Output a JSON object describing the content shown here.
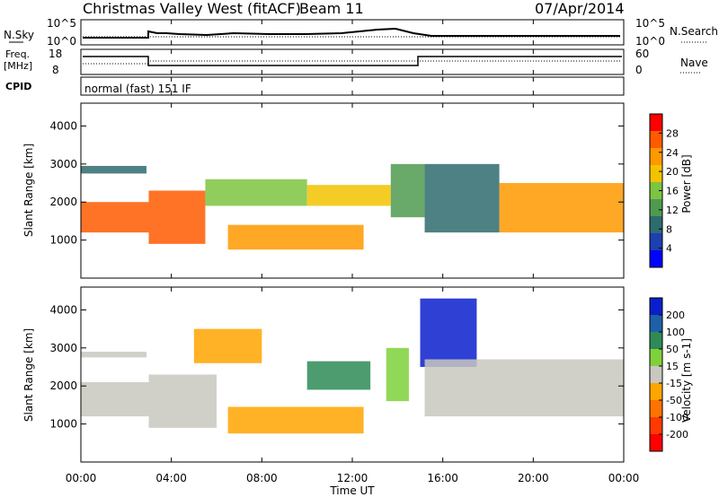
{
  "header": {
    "station": "Christmas Valley West (fitACF)",
    "beam": "Beam 11",
    "date": "07/Apr/2014"
  },
  "panels": {
    "nsky": {
      "label": "N.Sky",
      "tick_top": "10^5",
      "tick_bottom": "10^0"
    },
    "nsearch": {
      "label": "N.Search",
      "tick_top": "10^5",
      "tick_bottom": "10^0"
    },
    "freq": {
      "label_line1": "Freq.",
      "label_line2": "[MHz]",
      "tick_top": "18",
      "tick_bottom": "8"
    },
    "nave": {
      "label": "Nave",
      "tick_top": "60",
      "tick_bottom": "0"
    },
    "cpid": {
      "label": "CPID",
      "value": "normal (fast) 151 IF"
    }
  },
  "chart_data": [
    {
      "type": "heatmap",
      "name": "power",
      "ylabel": "Slant Range [km]",
      "y_ticks": [
        1000,
        2000,
        3000,
        4000
      ],
      "ylim": [
        0,
        4600
      ],
      "colorbar": {
        "label": "Power [dB]",
        "ticks": [
          "4",
          "8",
          "12",
          "16",
          "20",
          "24",
          "28"
        ],
        "colors": [
          "#0000ff",
          "#1d3fb0",
          "#2e6b6f",
          "#4f9a4f",
          "#7cc441",
          "#f3c300",
          "#ff9900",
          "#ff5a00",
          "#ff0000"
        ]
      },
      "echo_regions": [
        {
          "t_start": 0.0,
          "t_end": 3.0,
          "range_start": 1200,
          "range_end": 2000,
          "power_level": 28
        },
        {
          "t_start": 0.0,
          "t_end": 2.9,
          "range_start": 2750,
          "range_end": 2950,
          "power_level": 10
        },
        {
          "t_start": 3.0,
          "t_end": 5.5,
          "range_start": 900,
          "range_end": 2300,
          "power_level": 28
        },
        {
          "t_start": 5.5,
          "t_end": 10.0,
          "range_start": 1900,
          "range_end": 2600,
          "power_level": 16
        },
        {
          "t_start": 6.5,
          "t_end": 12.5,
          "range_start": 750,
          "range_end": 1400,
          "power_level": 24
        },
        {
          "t_start": 10.0,
          "t_end": 13.7,
          "range_start": 1900,
          "range_end": 2450,
          "power_level": 20
        },
        {
          "t_start": 13.7,
          "t_end": 15.2,
          "range_start": 1600,
          "range_end": 3000,
          "power_level": 14
        },
        {
          "t_start": 15.2,
          "t_end": 18.5,
          "range_start": 1200,
          "range_end": 3000,
          "power_level": 8
        },
        {
          "t_start": 18.5,
          "t_end": 24.0,
          "range_start": 1200,
          "range_end": 2500,
          "power_level": 24
        }
      ]
    },
    {
      "type": "heatmap",
      "name": "velocity",
      "ylabel": "Slant Range [km]",
      "xlabel": "Time UT",
      "x_ticks": [
        "00:00",
        "04:00",
        "08:00",
        "12:00",
        "16:00",
        "20:00",
        "00:00"
      ],
      "xlim": [
        0,
        24
      ],
      "y_ticks": [
        1000,
        2000,
        3000,
        4000
      ],
      "ylim": [
        0,
        4600
      ],
      "colorbar": {
        "label": "Velocity [m s-1]",
        "ticks": [
          "200",
          "100",
          "50",
          "15",
          "-15",
          "-50",
          "-100",
          "-200"
        ],
        "colors": [
          "#0a1fcc",
          "#1f5fa8",
          "#2e8b57",
          "#7fd13b",
          "#c8c8c0",
          "#ffa500",
          "#ff7300",
          "#ff3a00",
          "#ff0000"
        ]
      },
      "echo_regions": [
        {
          "t_start": 0.0,
          "t_end": 3.0,
          "range_start": 1200,
          "range_end": 2100,
          "velocity_class": "-15..15"
        },
        {
          "t_start": 0.0,
          "t_end": 2.9,
          "range_start": 2750,
          "range_end": 2900,
          "velocity_class": "-15..15"
        },
        {
          "t_start": 3.0,
          "t_end": 6.0,
          "range_start": 900,
          "range_end": 2300,
          "velocity_class": "-15..15"
        },
        {
          "t_start": 5.0,
          "t_end": 8.0,
          "range_start": 2600,
          "range_end": 3500,
          "velocity_class": "-50"
        },
        {
          "t_start": 6.5,
          "t_end": 12.5,
          "range_start": 750,
          "range_end": 1450,
          "velocity_class": "-50"
        },
        {
          "t_start": 10.0,
          "t_end": 12.8,
          "range_start": 1900,
          "range_end": 2650,
          "velocity_class": "50"
        },
        {
          "t_start": 13.5,
          "t_end": 14.5,
          "range_start": 1600,
          "range_end": 3000,
          "velocity_class": "15"
        },
        {
          "t_start": 15.0,
          "t_end": 17.5,
          "range_start": 2500,
          "range_end": 4300,
          "velocity_class": "200"
        },
        {
          "t_start": 15.2,
          "t_end": 24.0,
          "range_start": 1200,
          "range_end": 2700,
          "velocity_class": "-15..15"
        }
      ]
    }
  ]
}
